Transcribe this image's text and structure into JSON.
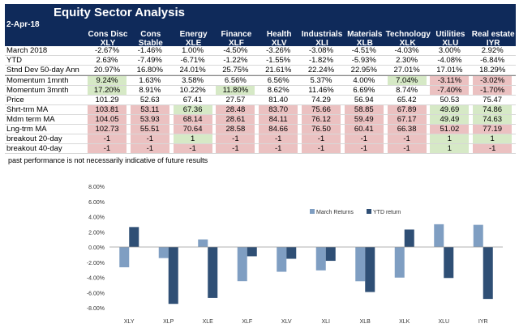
{
  "sheet": {
    "title": "Equity Sector  Analysis",
    "date": "2-Apr-18",
    "disclaimer": "past performance is not necessarily indicative of future results",
    "columns": [
      {
        "name": "Cons Disc",
        "ticker": "XLY"
      },
      {
        "name": "Cons Stable",
        "ticker": "XLP"
      },
      {
        "name": "Energy",
        "ticker": "XLE"
      },
      {
        "name": "Finance",
        "ticker": "XLF"
      },
      {
        "name": "Health",
        "ticker": "XLV"
      },
      {
        "name": "Industrials",
        "ticker": "XLI"
      },
      {
        "name": "Materials",
        "ticker": "XLB"
      },
      {
        "name": "Technology",
        "ticker": "XLK"
      },
      {
        "name": "Utilities",
        "ticker": "XLU"
      },
      {
        "name": "Real estate",
        "ticker": "IYR"
      }
    ],
    "rows": [
      {
        "label": "March 2018",
        "values": [
          "-2.67%",
          "-1.46%",
          "1.00%",
          "-4.50%",
          "-3.26%",
          "-3.08%",
          "-4.51%",
          "-4.03%",
          "3.00%",
          "2.92%"
        ]
      },
      {
        "label": "YTD",
        "values": [
          "2.63%",
          "-7.49%",
          "-6.71%",
          "-1.22%",
          "-1.55%",
          "-1.82%",
          "-5.93%",
          "2.30%",
          "-4.08%",
          "-6.84%"
        ]
      },
      {
        "label": "Stnd Dev 50-day Ann",
        "values": [
          "20.97%",
          "16.80%",
          "24.01%",
          "25.75%",
          "21.61%",
          "22.24%",
          "22.95%",
          "27.01%",
          "17.01%",
          "18.29%"
        ]
      },
      {
        "label": "Momentum 1mnth",
        "values": [
          "9.24%",
          "1.63%",
          "3.58%",
          "6.56%",
          "6.56%",
          "5.37%",
          "4.00%",
          "7.04%",
          "-3.11%",
          "-3.02%"
        ],
        "fills": [
          "g",
          "",
          "",
          "",
          "",
          "",
          "",
          "g",
          "r",
          "r"
        ],
        "sep": true
      },
      {
        "label": "Momentum 3mnth",
        "values": [
          "17.20%",
          "8.91%",
          "10.22%",
          "11.80%",
          "8.62%",
          "11.46%",
          "6.69%",
          "8.74%",
          "-7.40%",
          "-1.70%"
        ],
        "fills": [
          "g",
          "",
          "",
          "g",
          "",
          "",
          "",
          "",
          "r",
          "r"
        ]
      },
      {
        "label": "Price",
        "values": [
          "101.29",
          "52.63",
          "67.41",
          "27.57",
          "81.40",
          "74.29",
          "56.94",
          "65.42",
          "50.53",
          "75.47"
        ]
      },
      {
        "label": "Shrt-trm MA",
        "values": [
          "103.81",
          "53.11",
          "67.36",
          "28.48",
          "83.70",
          "75.66",
          "58.85",
          "67.89",
          "49.69",
          "74.86"
        ],
        "fills": [
          "r",
          "r",
          "g",
          "r",
          "r",
          "r",
          "r",
          "r",
          "g",
          "g"
        ]
      },
      {
        "label": "Mdm term MA",
        "values": [
          "104.05",
          "53.93",
          "68.14",
          "28.61",
          "84.11",
          "76.12",
          "59.49",
          "67.17",
          "49.49",
          "74.63"
        ],
        "fills": [
          "r",
          "r",
          "r",
          "r",
          "r",
          "r",
          "r",
          "r",
          "g",
          "g"
        ]
      },
      {
        "label": "Lng-trm MA",
        "values": [
          "102.73",
          "55.51",
          "70.64",
          "28.58",
          "84.66",
          "76.50",
          "60.41",
          "66.38",
          "51.02",
          "77.19"
        ],
        "fills": [
          "r",
          "r",
          "r",
          "r",
          "r",
          "r",
          "r",
          "r",
          "r",
          "r"
        ]
      },
      {
        "label": "breakout 20-day",
        "values": [
          "-1",
          "-1",
          "1",
          "-1",
          "-1",
          "-1",
          "-1",
          "-1",
          "1",
          "1"
        ],
        "fills": [
          "r",
          "r",
          "g",
          "r",
          "r",
          "r",
          "r",
          "r",
          "g",
          "g"
        ]
      },
      {
        "label": "breakout 40-day",
        "values": [
          "-1",
          "-1",
          "-1",
          "-1",
          "-1",
          "-1",
          "-1",
          "-1",
          "1",
          "-1"
        ],
        "fills": [
          "r",
          "r",
          "r",
          "r",
          "r",
          "r",
          "r",
          "r",
          "g",
          "r"
        ]
      }
    ],
    "colors": {
      "header": "#0f2a5a",
      "green": "#d6e9c6",
      "red": "#ebc1c1"
    }
  },
  "chart_data": {
    "type": "bar",
    "categories": [
      "XLY",
      "XLP",
      "XLE",
      "XLF",
      "XLV",
      "XLI",
      "XLB",
      "XLK",
      "XLU",
      "IYR"
    ],
    "series": [
      {
        "name": "March Returns",
        "values": [
          -2.67,
          -1.46,
          1.0,
          -4.5,
          -3.26,
          -3.08,
          -4.51,
          -4.03,
          3.0,
          2.92
        ],
        "color": "#7f9ec2"
      },
      {
        "name": "YTD return",
        "values": [
          2.63,
          -7.49,
          -6.71,
          -1.22,
          -1.55,
          -1.82,
          -5.93,
          2.3,
          -4.08,
          -6.84
        ],
        "color": "#2f4f75"
      }
    ],
    "ylim": [
      -8,
      8
    ],
    "yticks": [
      "-8.00%",
      "-6.00%",
      "-4.00%",
      "-2.00%",
      "0.00%",
      "2.00%",
      "4.00%",
      "6.00%",
      "8.00%"
    ],
    "legend_position": "top-right"
  }
}
